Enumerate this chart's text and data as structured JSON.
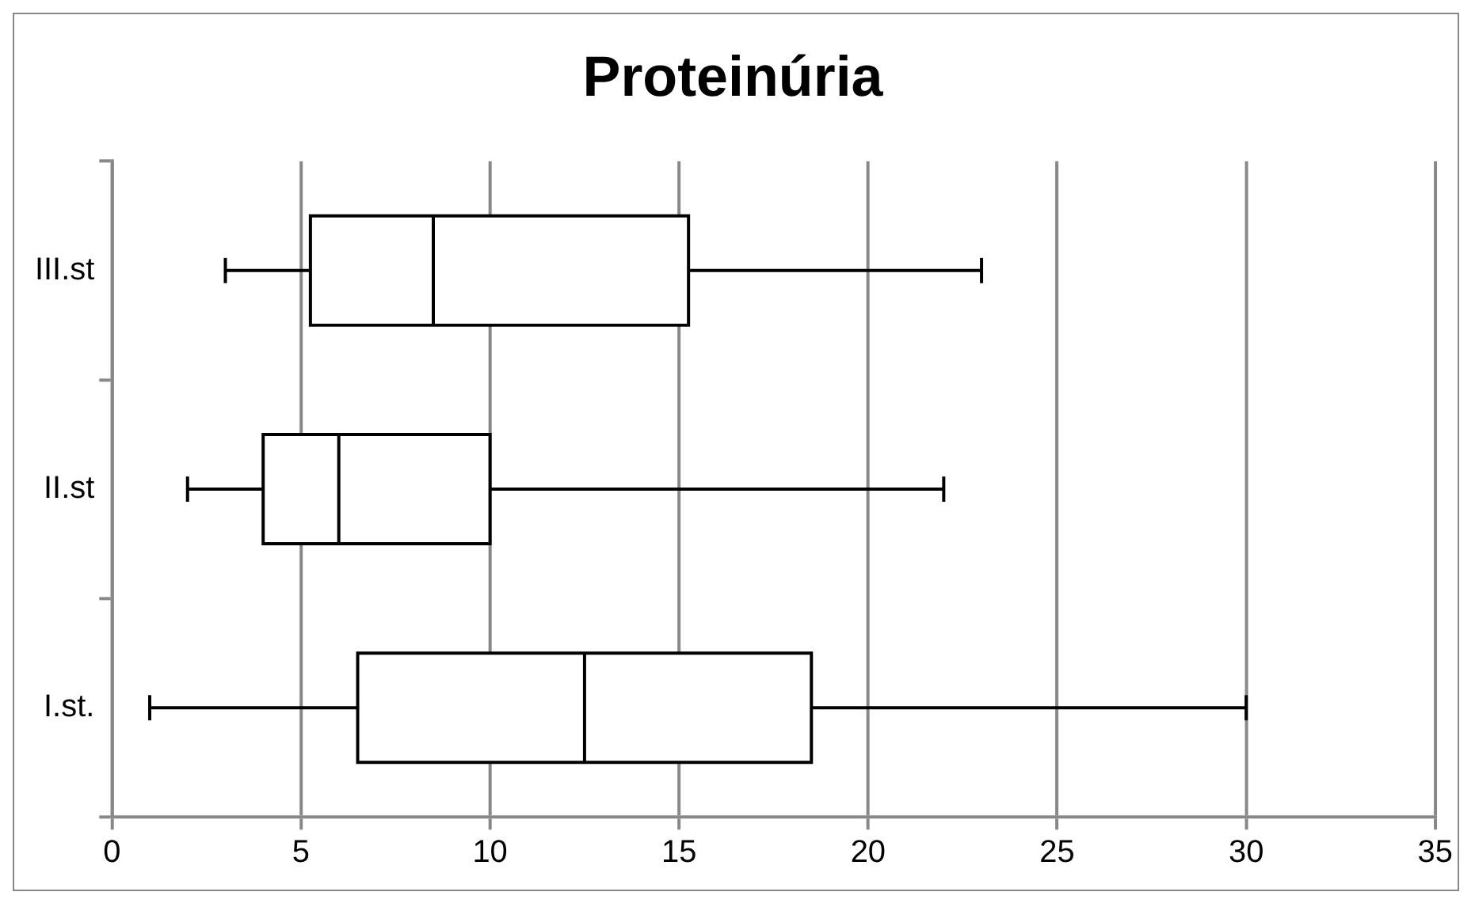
{
  "chart_data": {
    "type": "box",
    "title": "Proteinúria",
    "orientation": "horizontal",
    "categories": [
      "III.st",
      "II.st",
      "I.st."
    ],
    "boxes": [
      {
        "low": 3,
        "q1": 5.25,
        "median": 8.5,
        "q3": 15.25,
        "high": 23
      },
      {
        "low": 2,
        "q1": 4,
        "median": 6,
        "q3": 10,
        "high": 22
      },
      {
        "low": 1,
        "q1": 6.5,
        "median": 12.5,
        "q3": 18.5,
        "high": 30
      }
    ],
    "xlim": [
      0,
      35
    ],
    "xticks": [
      0,
      5,
      10,
      15,
      20,
      25,
      30,
      35
    ],
    "grid": "x"
  }
}
